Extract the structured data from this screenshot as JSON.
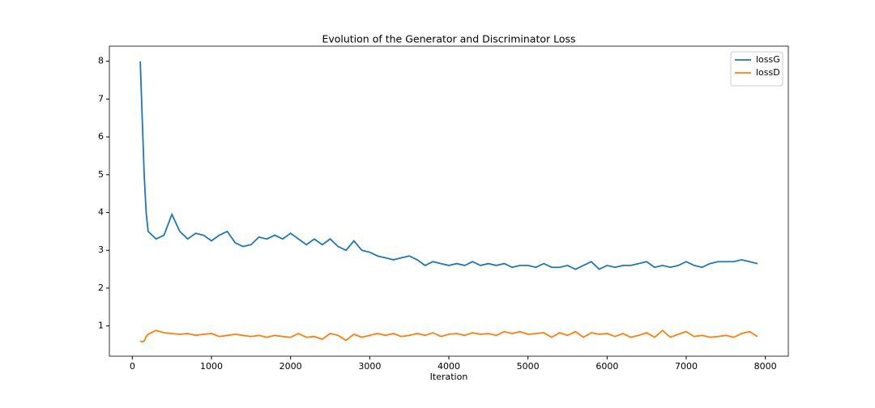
{
  "chart_data": {
    "type": "line",
    "title": "Evolution of the Generator and Discriminator Loss",
    "x_label": "Iteration",
    "x": [
      100,
      125,
      150,
      175,
      200,
      300,
      400,
      500,
      600,
      700,
      800,
      900,
      1000,
      1100,
      1200,
      1300,
      1400,
      1500,
      1600,
      1700,
      1800,
      1900,
      2000,
      2100,
      2200,
      2300,
      2400,
      2500,
      2600,
      2700,
      2800,
      2900,
      3000,
      3100,
      3200,
      3300,
      3400,
      3500,
      3600,
      3700,
      3800,
      3900,
      4000,
      4100,
      4200,
      4300,
      4400,
      4500,
      4600,
      4700,
      4800,
      4900,
      5000,
      5100,
      5200,
      5300,
      5400,
      5500,
      5600,
      5700,
      5800,
      5900,
      6000,
      6100,
      6200,
      6300,
      6400,
      6500,
      6600,
      6700,
      6800,
      6900,
      7000,
      7100,
      7200,
      7300,
      7400,
      7500,
      7600,
      7700,
      7800,
      7900
    ],
    "series": [
      {
        "name": "lossG",
        "color": "#1f77b4",
        "values": [
          8.0,
          6.5,
          5.0,
          4.0,
          3.5,
          3.3,
          3.4,
          3.95,
          3.5,
          3.3,
          3.45,
          3.4,
          3.25,
          3.4,
          3.5,
          3.2,
          3.1,
          3.15,
          3.35,
          3.3,
          3.4,
          3.3,
          3.45,
          3.3,
          3.15,
          3.3,
          3.15,
          3.3,
          3.1,
          3.0,
          3.25,
          3.0,
          2.95,
          2.85,
          2.8,
          2.75,
          2.8,
          2.85,
          2.75,
          2.6,
          2.7,
          2.65,
          2.6,
          2.65,
          2.6,
          2.7,
          2.6,
          2.65,
          2.6,
          2.65,
          2.55,
          2.6,
          2.6,
          2.55,
          2.65,
          2.55,
          2.55,
          2.6,
          2.5,
          2.6,
          2.7,
          2.5,
          2.6,
          2.55,
          2.6,
          2.6,
          2.65,
          2.7,
          2.55,
          2.6,
          2.55,
          2.6,
          2.7,
          2.6,
          2.55,
          2.65,
          2.7,
          2.7,
          2.7,
          2.75,
          2.7,
          2.65
        ]
      },
      {
        "name": "lossD",
        "color": "#ff7f0e",
        "values": [
          0.6,
          0.58,
          0.6,
          0.72,
          0.78,
          0.88,
          0.82,
          0.8,
          0.78,
          0.8,
          0.75,
          0.78,
          0.8,
          0.72,
          0.75,
          0.78,
          0.75,
          0.72,
          0.75,
          0.7,
          0.75,
          0.72,
          0.7,
          0.8,
          0.7,
          0.72,
          0.65,
          0.8,
          0.75,
          0.62,
          0.78,
          0.7,
          0.75,
          0.8,
          0.75,
          0.8,
          0.72,
          0.75,
          0.8,
          0.75,
          0.82,
          0.72,
          0.78,
          0.8,
          0.75,
          0.82,
          0.78,
          0.8,
          0.75,
          0.85,
          0.8,
          0.85,
          0.78,
          0.8,
          0.82,
          0.7,
          0.82,
          0.75,
          0.85,
          0.7,
          0.82,
          0.78,
          0.8,
          0.72,
          0.8,
          0.7,
          0.75,
          0.82,
          0.7,
          0.88,
          0.7,
          0.78,
          0.85,
          0.72,
          0.75,
          0.7,
          0.72,
          0.75,
          0.7,
          0.8,
          0.85,
          0.72
        ]
      }
    ],
    "xlim": [
      -290,
      8290
    ],
    "xticks": [
      0,
      1000,
      2000,
      3000,
      4000,
      5000,
      6000,
      7000,
      8000
    ],
    "ylim": [
      0.2,
      8.4
    ],
    "yticks": [
      1,
      2,
      3,
      4,
      5,
      6,
      7,
      8
    ],
    "legend": "upper right"
  }
}
